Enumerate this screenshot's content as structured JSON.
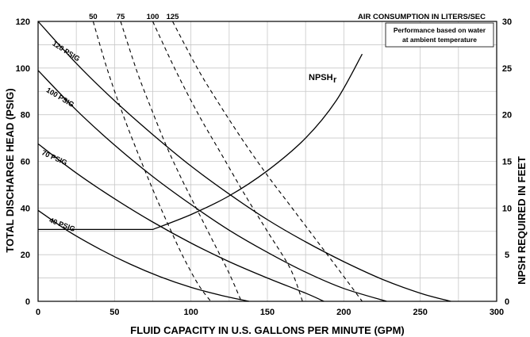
{
  "chart_data": {
    "type": "line",
    "title": "",
    "xlabel": "FLUID CAPACITY IN U.S. GALLONS PER MINUTE (GPM)",
    "ylabel": "TOTAL DISCHARGE HEAD (PSIG)",
    "y2label": "NPSH REQUIRED IN FEET",
    "xlim": [
      0,
      300
    ],
    "ylim": [
      0,
      120
    ],
    "y2lim": [
      0,
      30
    ],
    "x_ticks": [
      "0",
      "50",
      "100",
      "150",
      "200",
      "250",
      "300"
    ],
    "y_ticks": [
      "0",
      "20",
      "40",
      "60",
      "80",
      "100",
      "120"
    ],
    "y2_ticks": [
      "0",
      "5",
      "10",
      "15",
      "20",
      "25",
      "30"
    ],
    "grid": true,
    "note_line1": "Performance based on water",
    "note_line2": "at ambient temperature",
    "air_consumption_title": "AIR CONSUMPTION IN LITERS/SEC",
    "air_labels": [
      "50",
      "75",
      "100",
      "125"
    ],
    "npsh_label": "NPSH",
    "npsh_subscript": "r",
    "series": [
      {
        "name": "120 PSIG",
        "style": "solid",
        "x": [
          0,
          25,
          50,
          75,
          100,
          125,
          150,
          175,
          200,
          225,
          250,
          270
        ],
        "y": [
          120,
          102,
          86,
          71.5,
          58,
          46,
          35,
          25.5,
          17,
          9.5,
          3.5,
          0
        ]
      },
      {
        "name": "100 PSIG",
        "style": "solid",
        "x": [
          0,
          25,
          50,
          75,
          100,
          125,
          150,
          175,
          200,
          228
        ],
        "y": [
          99,
          82,
          67,
          53.5,
          41.5,
          30.5,
          21,
          12.5,
          5.5,
          0
        ]
      },
      {
        "name": "70 PSIG",
        "style": "solid",
        "x": [
          0,
          25,
          50,
          75,
          100,
          125,
          150,
          175,
          187
        ],
        "y": [
          67.5,
          55,
          44,
          34,
          25,
          17,
          10,
          3.5,
          0
        ]
      },
      {
        "name": "40 PSIG",
        "style": "solid",
        "x": [
          0,
          20,
          40,
          60,
          80,
          100,
          120,
          138
        ],
        "y": [
          39,
          30,
          22.5,
          16,
          10.5,
          6,
          2.5,
          0
        ]
      }
    ],
    "air_series": [
      {
        "name": "50",
        "style": "dashed",
        "x": [
          36,
          45,
          55,
          65,
          75,
          85,
          95,
          105,
          113
        ],
        "y": [
          120,
          100,
          81,
          64,
          48,
          33,
          19,
          7,
          0
        ]
      },
      {
        "name": "75",
        "style": "dashed",
        "x": [
          54,
          65,
          75,
          85,
          95,
          105,
          115,
          125,
          133
        ],
        "y": [
          120,
          98,
          81,
          65,
          51,
          38,
          25,
          12,
          0
        ]
      },
      {
        "name": "100",
        "style": "dashed",
        "x": [
          75,
          90,
          105,
          120,
          135,
          150,
          165,
          173
        ],
        "y": [
          120,
          99,
          80,
          63,
          46,
          30,
          14,
          0
        ]
      },
      {
        "name": "125",
        "style": "dashed",
        "x": [
          88,
          105,
          120,
          135,
          150,
          165,
          180,
          195,
          212
        ],
        "y": [
          120,
          99,
          83,
          68,
          54,
          41,
          28,
          15,
          0
        ]
      }
    ],
    "npsh_series": {
      "name": "NPSHr",
      "axis": "right",
      "style": "solid",
      "x": [
        0,
        75,
        100,
        125,
        150,
        175,
        195,
        212
      ],
      "y": [
        7.7,
        7.7,
        9.3,
        11.3,
        14,
        17.5,
        21.5,
        26.5
      ]
    }
  }
}
